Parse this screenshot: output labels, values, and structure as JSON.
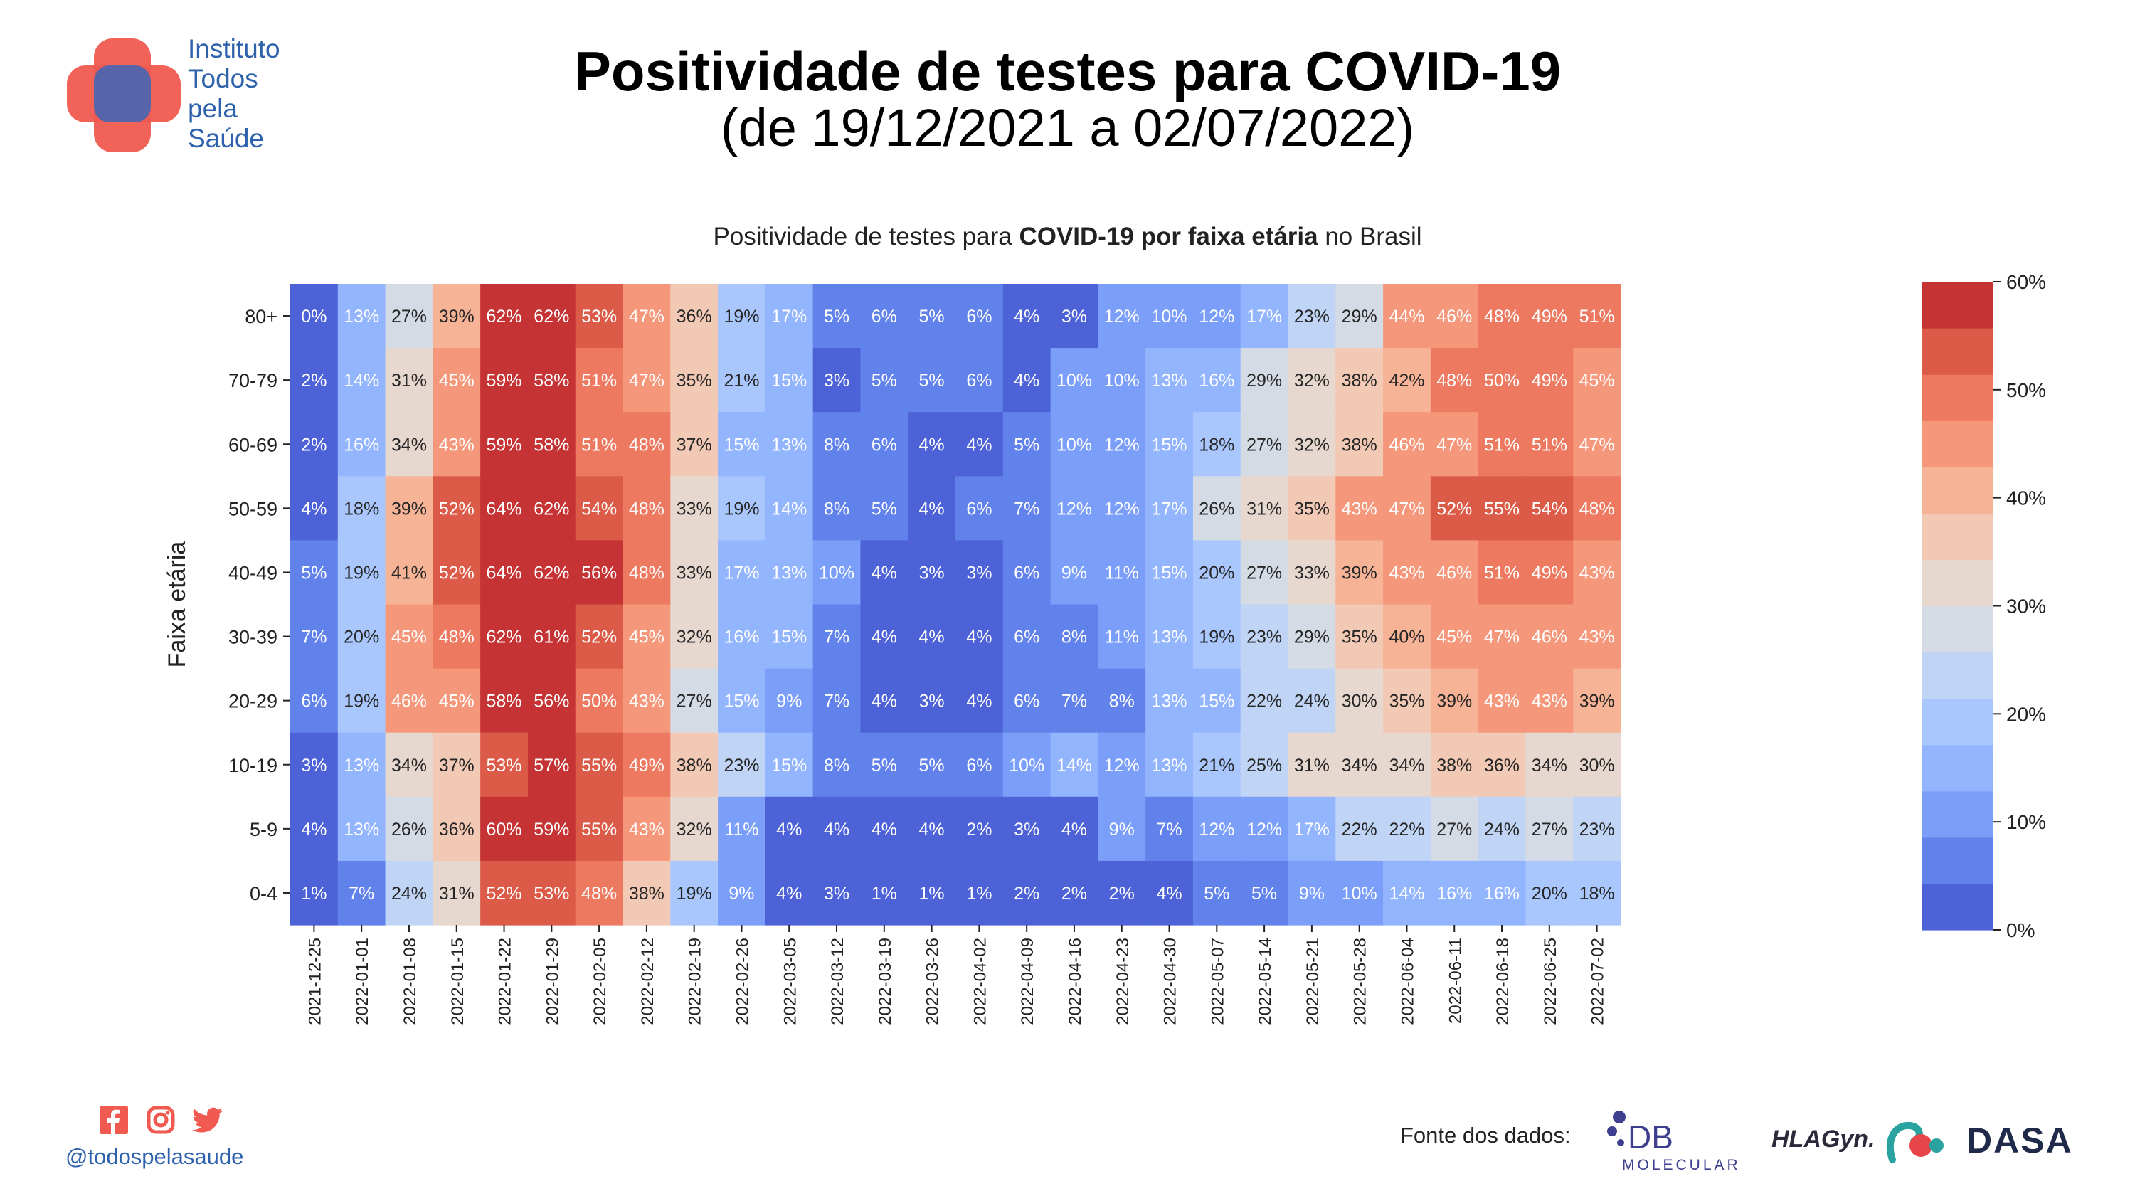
{
  "header": {
    "title": "Positividade de testes para COVID-19",
    "subtitle": "(de 19/12/2021 a 02/07/2022)",
    "brand_lines": [
      "Instituto",
      "Todos",
      "pela",
      "Saúde"
    ]
  },
  "footer": {
    "handle": "@todospelasaude",
    "social_icons": [
      "facebook-icon",
      "instagram-icon",
      "twitter-icon"
    ],
    "source_label": "Fonte dos dados:",
    "logo_db_line1": "DB",
    "logo_db_line2": "MOLECULAR",
    "logo_hla": "HLAGyn.",
    "logo_dasa": "DASA"
  },
  "colors": {
    "brand_blue": "#2f62ad",
    "brand_red": "#f05a50",
    "scale": [
      "#4d62d7",
      "#6282eb",
      "#7b9ff9",
      "#93b5fe",
      "#aac7fd",
      "#c0d4f5",
      "#d5dbe5",
      "#e6d7cf",
      "#f2c9b4",
      "#f7b396",
      "#f5977a",
      "#ec7960",
      "#dc5b48",
      "#c53334"
    ]
  },
  "chart_data": {
    "type": "heatmap",
    "title_parts": [
      "Positividade de testes para ",
      "COVID-19 por faixa etária",
      " no Brasil"
    ],
    "ylabel": "Faixa etária",
    "xlabel": "",
    "value_suffix": "%",
    "x": [
      "2021-12-25",
      "2022-01-01",
      "2022-01-08",
      "2022-01-15",
      "2022-01-22",
      "2022-01-29",
      "2022-02-05",
      "2022-02-12",
      "2022-02-19",
      "2022-02-26",
      "2022-03-05",
      "2022-03-12",
      "2022-03-19",
      "2022-03-26",
      "2022-04-02",
      "2022-04-09",
      "2022-04-16",
      "2022-04-23",
      "2022-04-30",
      "2022-05-07",
      "2022-05-14",
      "2022-05-21",
      "2022-05-28",
      "2022-06-04",
      "2022-06-11",
      "2022-06-18",
      "2022-06-25",
      "2022-07-02"
    ],
    "y": [
      "80+",
      "70-79",
      "60-69",
      "50-59",
      "40-49",
      "30-39",
      "20-29",
      "10-19",
      "5-9",
      "0-4"
    ],
    "values": [
      [
        0,
        13,
        27,
        39,
        62,
        62,
        53,
        47,
        36,
        19,
        17,
        5,
        6,
        5,
        6,
        4,
        3,
        12,
        10,
        12,
        17,
        23,
        29,
        44,
        46,
        48,
        49,
        51
      ],
      [
        2,
        14,
        31,
        45,
        59,
        58,
        51,
        47,
        35,
        21,
        15,
        3,
        5,
        5,
        6,
        4,
        10,
        10,
        13,
        16,
        29,
        32,
        38,
        42,
        48,
        50,
        49,
        45
      ],
      [
        2,
        16,
        34,
        43,
        59,
        58,
        51,
        48,
        37,
        15,
        13,
        8,
        6,
        4,
        4,
        5,
        10,
        12,
        15,
        18,
        27,
        32,
        38,
        46,
        47,
        51,
        51,
        47
      ],
      [
        4,
        18,
        39,
        52,
        64,
        62,
        54,
        48,
        33,
        19,
        14,
        8,
        5,
        4,
        6,
        7,
        12,
        12,
        17,
        26,
        31,
        35,
        43,
        47,
        52,
        55,
        54,
        48
      ],
      [
        5,
        19,
        41,
        52,
        64,
        62,
        56,
        48,
        33,
        17,
        13,
        10,
        4,
        3,
        3,
        6,
        9,
        11,
        15,
        20,
        27,
        33,
        39,
        43,
        46,
        51,
        49,
        43
      ],
      [
        7,
        20,
        45,
        48,
        62,
        61,
        52,
        45,
        32,
        16,
        15,
        7,
        4,
        4,
        4,
        6,
        8,
        11,
        13,
        19,
        23,
        29,
        35,
        40,
        45,
        47,
        46,
        43
      ],
      [
        6,
        19,
        46,
        45,
        58,
        56,
        50,
        43,
        27,
        15,
        9,
        7,
        4,
        3,
        4,
        6,
        7,
        8,
        13,
        15,
        22,
        24,
        30,
        35,
        39,
        43,
        43,
        39
      ],
      [
        3,
        13,
        34,
        37,
        53,
        57,
        55,
        49,
        38,
        23,
        15,
        8,
        5,
        5,
        6,
        10,
        14,
        12,
        13,
        21,
        25,
        31,
        34,
        34,
        38,
        36,
        34,
        30
      ],
      [
        4,
        13,
        26,
        36,
        60,
        59,
        55,
        43,
        32,
        11,
        4,
        4,
        4,
        4,
        2,
        3,
        4,
        9,
        7,
        12,
        12,
        17,
        22,
        22,
        27,
        24,
        27,
        23
      ],
      [
        1,
        7,
        24,
        31,
        52,
        53,
        48,
        38,
        19,
        9,
        4,
        3,
        1,
        1,
        1,
        2,
        2,
        2,
        4,
        5,
        5,
        9,
        10,
        14,
        16,
        16,
        20,
        18
      ]
    ],
    "vmin": 0,
    "vmax": 60,
    "colorbar_ticks": [
      "0%",
      "10%",
      "20%",
      "30%",
      "40%",
      "50%",
      "60%"
    ],
    "colorbar_tick_values": [
      0,
      10,
      20,
      30,
      40,
      50,
      60
    ]
  }
}
